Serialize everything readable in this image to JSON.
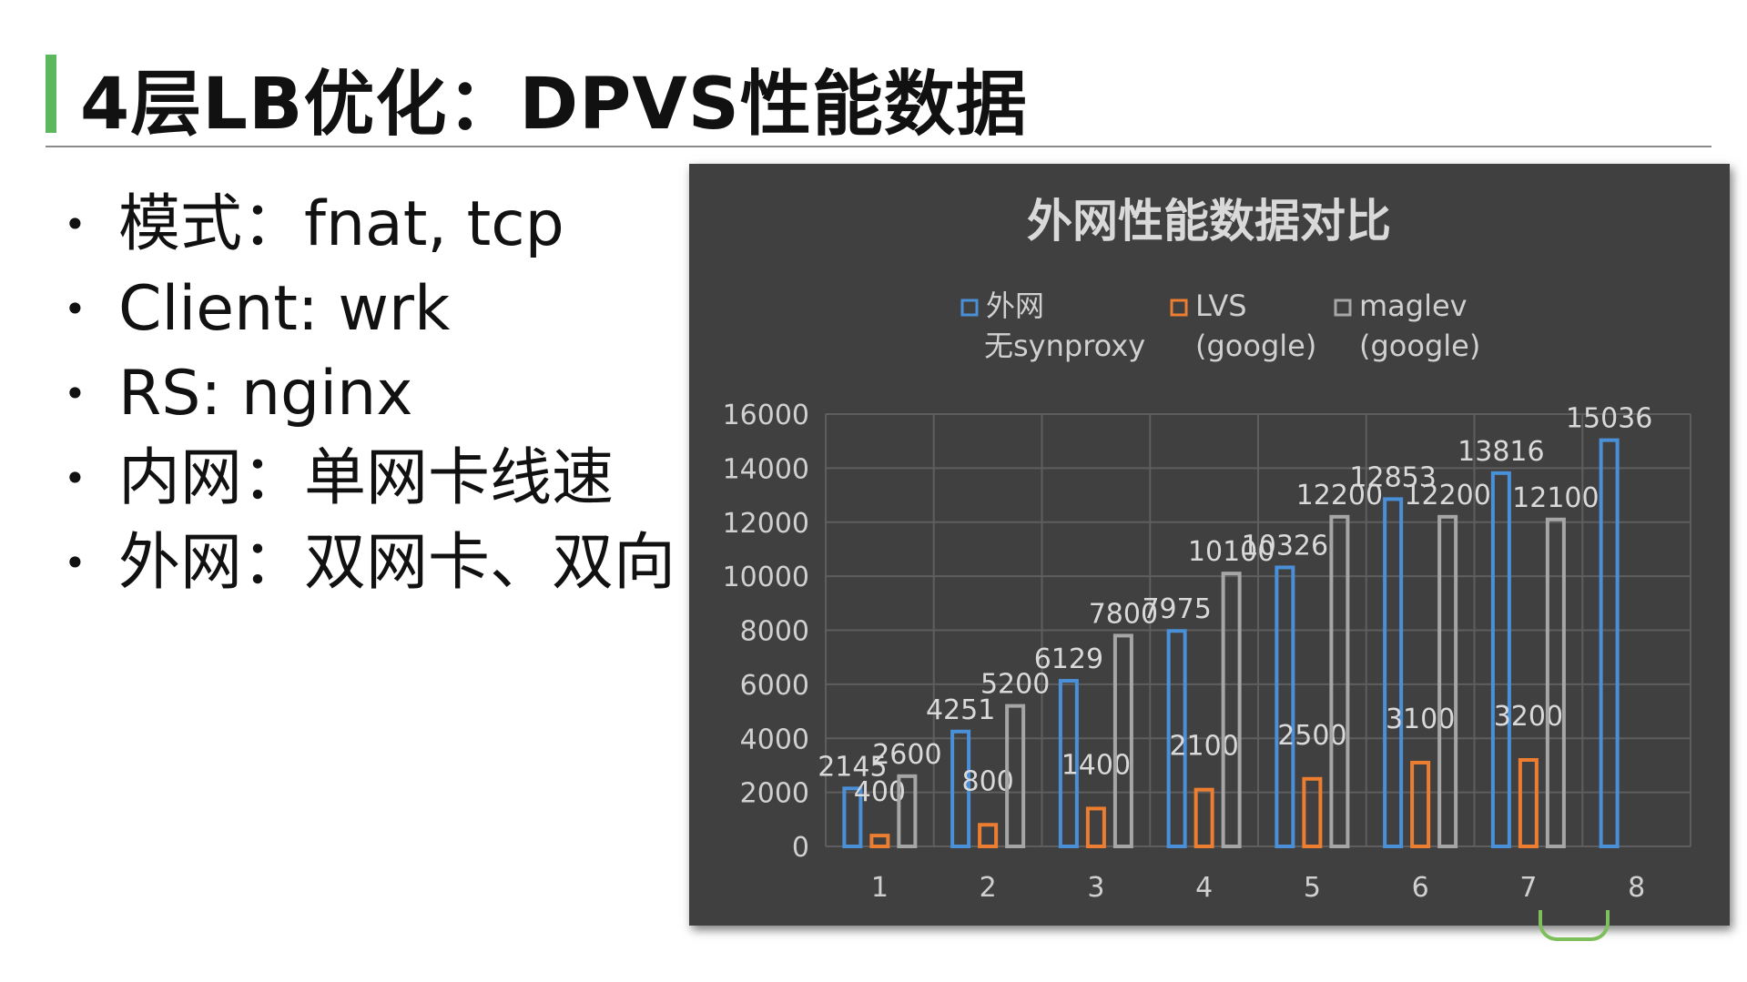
{
  "slide": {
    "title": "4层LB优化：DPVS性能数据",
    "bullets": [
      "模式：fnat, tcp",
      "Client: wrk",
      "RS: nginx",
      "内网：单网卡线速",
      "外网：双网卡、双向"
    ],
    "accent_color": "#5cb85c"
  },
  "chart_data": {
    "type": "bar",
    "title": "外网性能数据对比",
    "categories": [
      "1",
      "2",
      "3",
      "4",
      "5",
      "6",
      "7",
      "8"
    ],
    "series": [
      {
        "name_lines": [
          "外网",
          "无synproxy"
        ],
        "color": "#4a90d9",
        "values": [
          2145,
          4251,
          6129,
          7975,
          10326,
          12853,
          13816,
          15036
        ]
      },
      {
        "name_lines": [
          "LVS",
          "(google)"
        ],
        "color": "#ed7d31",
        "values": [
          400,
          800,
          1400,
          2100,
          2500,
          3100,
          3200,
          null
        ]
      },
      {
        "name_lines": [
          "maglev",
          "(google)"
        ],
        "color": "#a6a6a6",
        "values": [
          2600,
          5200,
          7800,
          10100,
          12200,
          12200,
          12100,
          null
        ]
      }
    ],
    "value_labels": [
      [
        "2145",
        "4251",
        "6129",
        "7975",
        "10326",
        "12853",
        "13816",
        "15036"
      ],
      [
        "400",
        "800",
        "1400",
        "2100",
        "2500",
        "3100",
        "3200",
        ""
      ],
      [
        "2600",
        "5200",
        "7800",
        "10100",
        "12200",
        "12200",
        "12100",
        ""
      ]
    ],
    "y_ticks": [
      "0",
      "2000",
      "4000",
      "6000",
      "8000",
      "10000",
      "12000",
      "14000",
      "16000"
    ],
    "ylim": [
      0,
      16000
    ],
    "grid": true,
    "legend_position": "top"
  }
}
